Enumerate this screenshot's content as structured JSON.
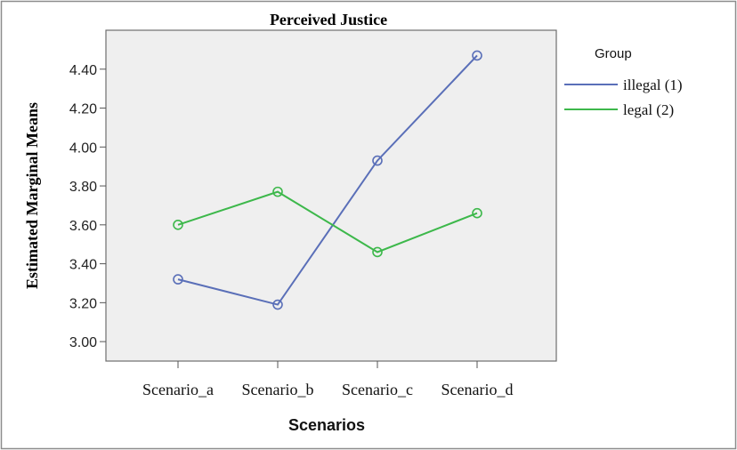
{
  "chart_data": {
    "type": "line",
    "title": "Perceived Justice",
    "xlabel": "Scenarios",
    "ylabel": "Estimated Marginal Means",
    "categories": [
      "Scenario_a",
      "Scenario_b",
      "Scenario_c",
      "Scenario_d"
    ],
    "ylim": [
      2.9,
      4.6
    ],
    "yticks": [
      3.0,
      3.2,
      3.4,
      3.6,
      3.8,
      4.0,
      4.2,
      4.4
    ],
    "ytick_labels": [
      "3.00",
      "3.20",
      "3.40",
      "3.60",
      "3.80",
      "4.00",
      "4.20",
      "4.40"
    ],
    "legend": {
      "title": "Group",
      "placement": "right"
    },
    "grid": false,
    "series": [
      {
        "name": "illegal (1)",
        "color": "#5A6FB8",
        "values": [
          3.32,
          3.19,
          3.93,
          4.47
        ]
      },
      {
        "name": "legal (2)",
        "color": "#3DB84B",
        "values": [
          3.6,
          3.77,
          3.46,
          3.66
        ]
      }
    ],
    "colors": {
      "plot_background": "#EFEFEF",
      "frame": "#7A7A7A",
      "outer_border": "#8C8C8C"
    }
  }
}
